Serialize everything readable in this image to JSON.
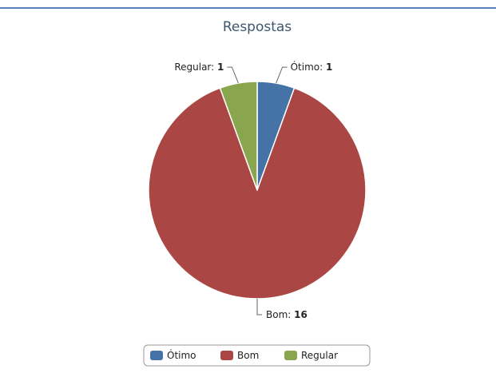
{
  "chart_data": {
    "type": "pie",
    "title": "Respostas",
    "categories": [
      "Ótimo",
      "Bom",
      "Regular"
    ],
    "values": [
      1,
      16,
      1
    ],
    "colors": [
      "#4572A7",
      "#AA4643",
      "#89A54E"
    ],
    "data_labels": [
      {
        "name": "Ótimo",
        "value": 1
      },
      {
        "name": "Bom",
        "value": 16
      },
      {
        "name": "Regular",
        "value": 1
      }
    ],
    "legend": {
      "placement": "bottom",
      "items": [
        "Ótimo",
        "Bom",
        "Regular"
      ]
    }
  },
  "colors": {
    "top_rule": "#5b7fb8",
    "slice_border": "#ffffff",
    "connector": "#666666",
    "legend_border": "#999999",
    "title_text": "#3e576f",
    "label_text": "#222222"
  }
}
